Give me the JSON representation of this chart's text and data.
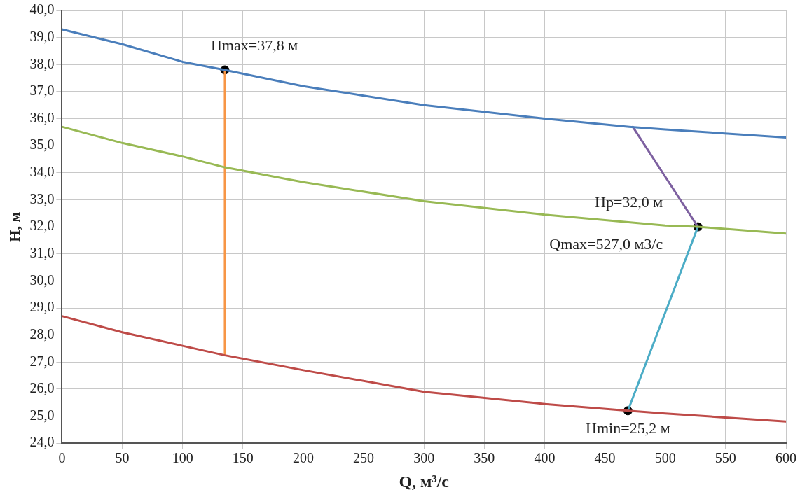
{
  "chart_data": {
    "type": "line",
    "xlabel": "Q, м³/с",
    "ylabel": "H, м",
    "xlim": [
      0,
      600
    ],
    "xticks": [
      0,
      50,
      100,
      150,
      200,
      250,
      300,
      350,
      400,
      450,
      500,
      550,
      600
    ],
    "ylim": [
      24,
      40
    ],
    "yticks": [
      {
        "value": 24,
        "label": "24,0"
      },
      {
        "value": 25,
        "label": "25,0"
      },
      {
        "value": 26,
        "label": "26,0"
      },
      {
        "value": 27,
        "label": "27,0"
      },
      {
        "value": 28,
        "label": "28,0"
      },
      {
        "value": 29,
        "label": "29,0"
      },
      {
        "value": 30,
        "label": "30,0"
      },
      {
        "value": 31,
        "label": "31,0"
      },
      {
        "value": 32,
        "label": "32,0"
      },
      {
        "value": 33,
        "label": "33,0"
      },
      {
        "value": 34,
        "label": "34,0"
      },
      {
        "value": 35,
        "label": "35,0"
      },
      {
        "value": 36,
        "label": "36,0"
      },
      {
        "value": 37,
        "label": "37,0"
      },
      {
        "value": 38,
        "label": "38,0"
      },
      {
        "value": 39,
        "label": "39,0"
      },
      {
        "value": 40,
        "label": "40,0"
      }
    ],
    "grid": true,
    "legend": false,
    "marker": "none",
    "line_style": "solid",
    "series": [
      {
        "color": "#4a7ebb",
        "x": [
          0,
          50,
          100,
          135,
          200,
          300,
          400,
          470,
          500,
          600
        ],
        "values": [
          39.3,
          38.75,
          38.1,
          37.8,
          37.2,
          36.5,
          36.0,
          35.7,
          35.6,
          35.3
        ]
      },
      {
        "color": "#98b954",
        "x": [
          0,
          50,
          100,
          135,
          200,
          300,
          400,
          500,
          527,
          600
        ],
        "values": [
          35.7,
          35.1,
          34.6,
          34.2,
          33.65,
          32.95,
          32.45,
          32.05,
          32.0,
          31.75
        ]
      },
      {
        "color": "#be4b48",
        "x": [
          0,
          50,
          100,
          135,
          200,
          300,
          400,
          469,
          500,
          600
        ],
        "values": [
          28.7,
          28.1,
          27.6,
          27.25,
          26.7,
          25.9,
          25.45,
          25.2,
          25.1,
          24.8
        ]
      },
      {
        "color": "#f79646",
        "x": [
          135,
          135
        ],
        "values": [
          27.25,
          37.8
        ]
      },
      {
        "color": "#7d60a0",
        "x": [
          473,
          527
        ],
        "values": [
          35.7,
          32.0
        ]
      },
      {
        "color": "#4bacc6",
        "x": [
          469,
          527
        ],
        "values": [
          25.2,
          32.0
        ]
      },
      {
        "type": "scatter",
        "marker": "circle",
        "color": "#000000",
        "x": [
          135,
          527,
          469
        ],
        "values": [
          37.8,
          32.0,
          25.2
        ]
      }
    ],
    "annotations": [
      {
        "text": "Hmax=37,8 м",
        "x": 135,
        "y": 37.8
      },
      {
        "text": "Hp=32,0 м",
        "x": 527,
        "y": 32.0
      },
      {
        "text": "Qmax=527,0 м3/с",
        "x": 527,
        "y": 32.0
      },
      {
        "text": "Hmin=25,2 м",
        "x": 469,
        "y": 25.2
      }
    ]
  }
}
